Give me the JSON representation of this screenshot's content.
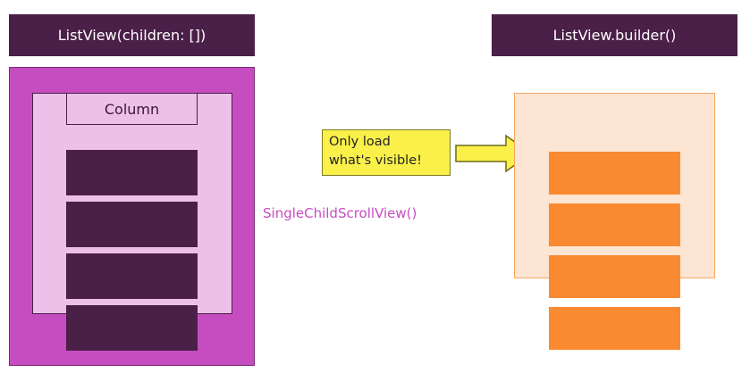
{
  "left": {
    "title": "ListView(children: [])",
    "column_label": "Column",
    "item_count": 4
  },
  "middle": {
    "scroll_label": "SingleChildScrollView()",
    "callout_line1": "Only load",
    "callout_line2": "what's visible!"
  },
  "right": {
    "title": "ListView.builder()",
    "item_count": 4
  },
  "colors": {
    "dark_purple": "#4a1f48",
    "magenta": "#c64dc0",
    "light_pink": "#ecc0e8",
    "yellow": "#fbf04a",
    "light_peach": "#fde5d3",
    "orange": "#fa8a32"
  }
}
